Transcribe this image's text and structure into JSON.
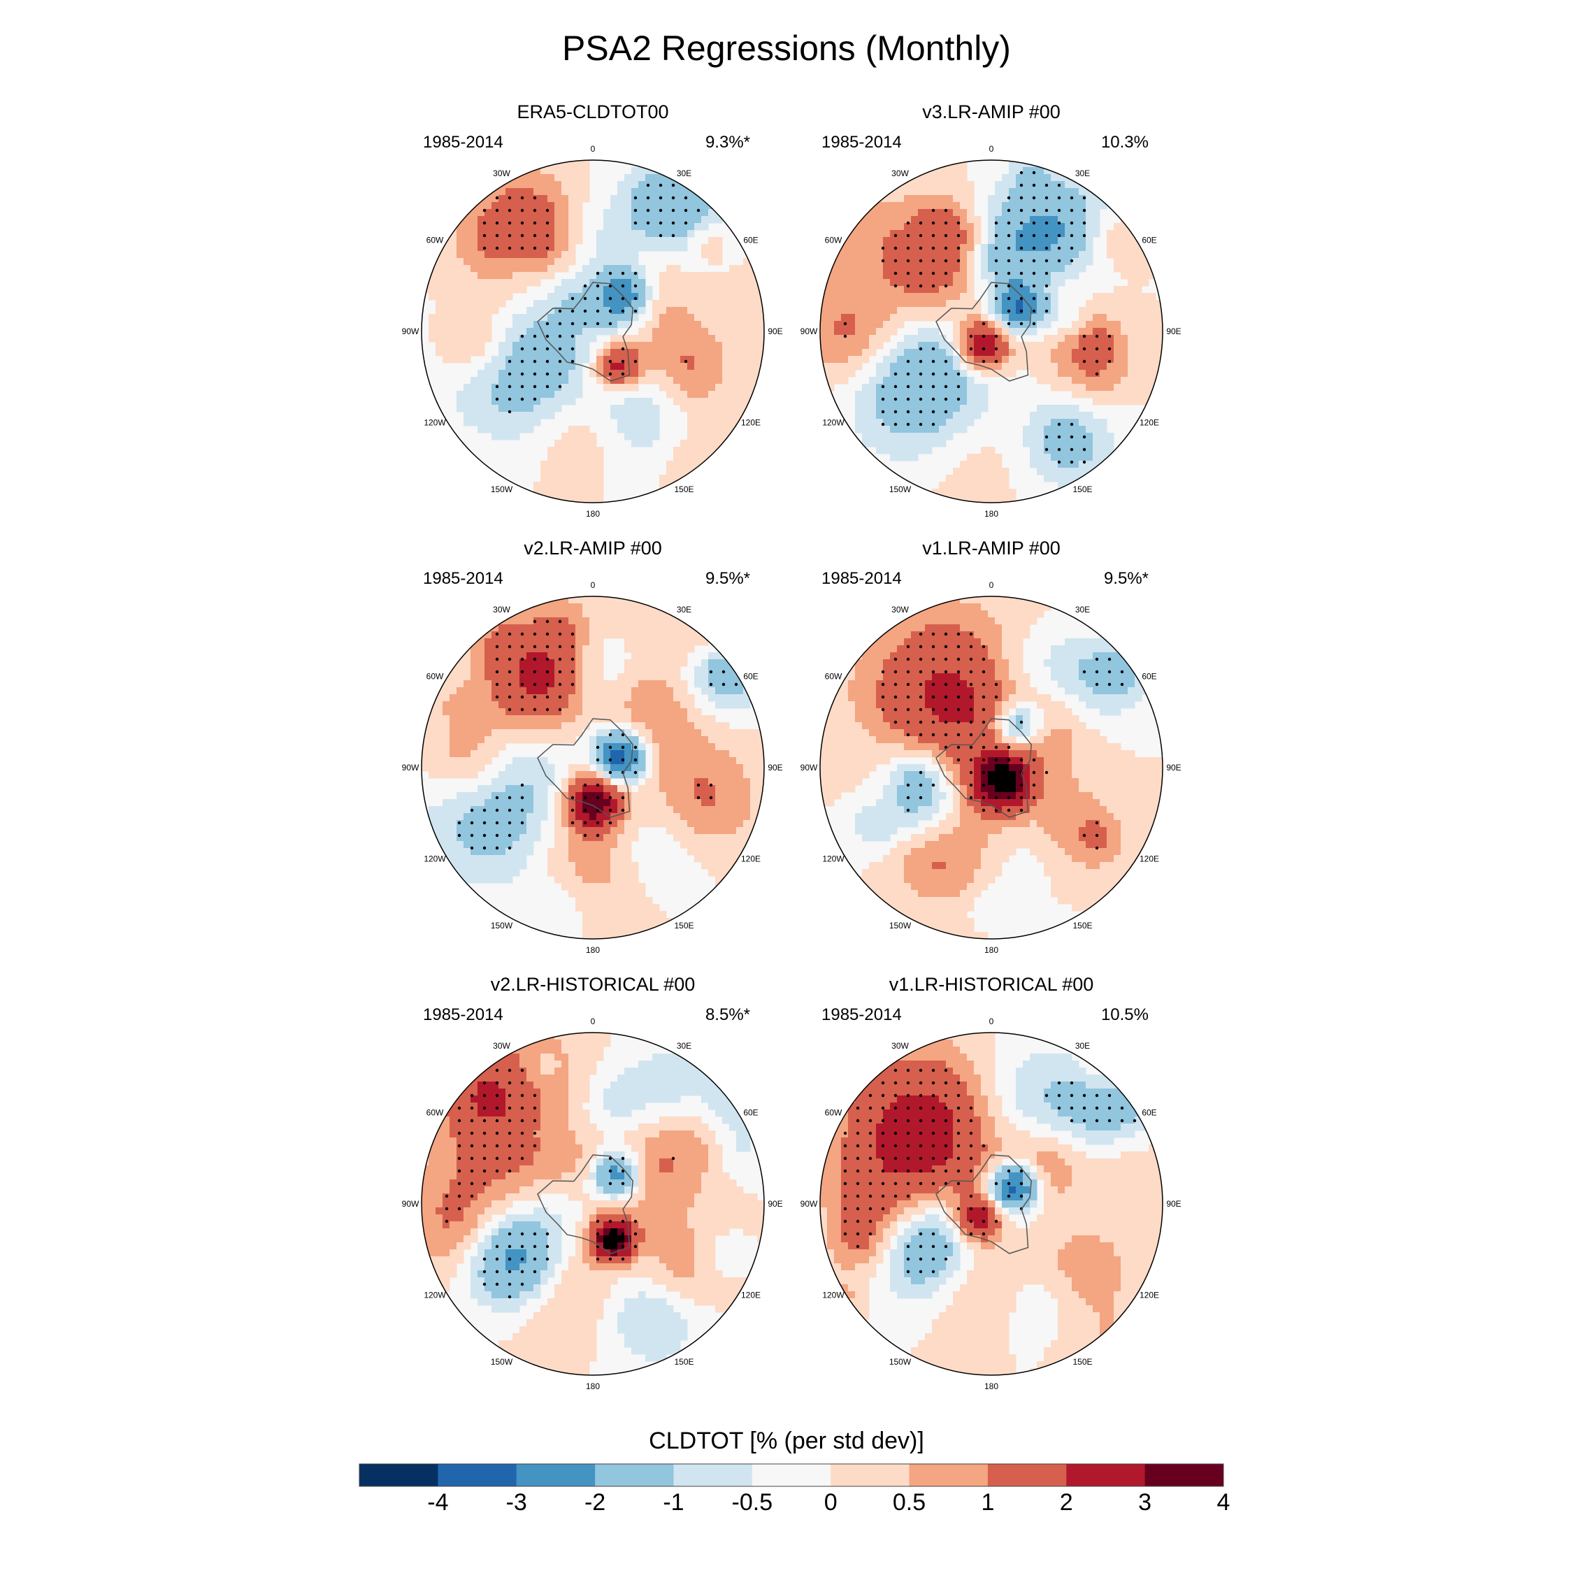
{
  "title": "PSA2 Regressions (Monthly)",
  "chart_data": {
    "type": "heatmap",
    "projection": "south polar stereographic",
    "panels": [
      {
        "title": "ERA5-CLDTOT00",
        "period": "1985-2014",
        "pct": "9.3%*"
      },
      {
        "title": "v3.LR-AMIP  #00",
        "period": "1985-2014",
        "pct": "10.3%"
      },
      {
        "title": "v2.LR-AMIP  #00",
        "period": "1985-2014",
        "pct": "9.5%*"
      },
      {
        "title": "v1.LR-AMIP  #00",
        "period": "1985-2014",
        "pct": "9.5%*"
      },
      {
        "title": "v2.LR-HISTORICAL  #00",
        "period": "1985-2014",
        "pct": "8.5%*"
      },
      {
        "title": "v1.LR-HISTORICAL  #00",
        "period": "1985-2014",
        "pct": "10.5%"
      }
    ],
    "longitude_labels": [
      "0",
      "30E",
      "60E",
      "90E",
      "120E",
      "150E",
      "180",
      "150W",
      "120W",
      "90W",
      "60W",
      "30W"
    ],
    "colorbar": {
      "title": "CLDTOT [% (per std dev)]",
      "levels": [
        -4,
        -3,
        -2,
        -1,
        -0.5,
        0,
        0.5,
        1,
        2,
        3,
        4
      ],
      "tick_labels": [
        "-4",
        "-3",
        "-2",
        "-1",
        "-0.5",
        "0",
        "0.5",
        "1",
        "2",
        "3",
        "4"
      ],
      "colors": [
        "#053061",
        "#2166ac",
        "#4393c3",
        "#92c5de",
        "#d1e5f0",
        "#f7f7f7",
        "#fddbc7",
        "#f4a582",
        "#d6604d",
        "#b2182b",
        "#67001f"
      ]
    }
  },
  "colors": {
    "background": "#ffffff",
    "coast": "#555555",
    "ink": "#000000"
  }
}
